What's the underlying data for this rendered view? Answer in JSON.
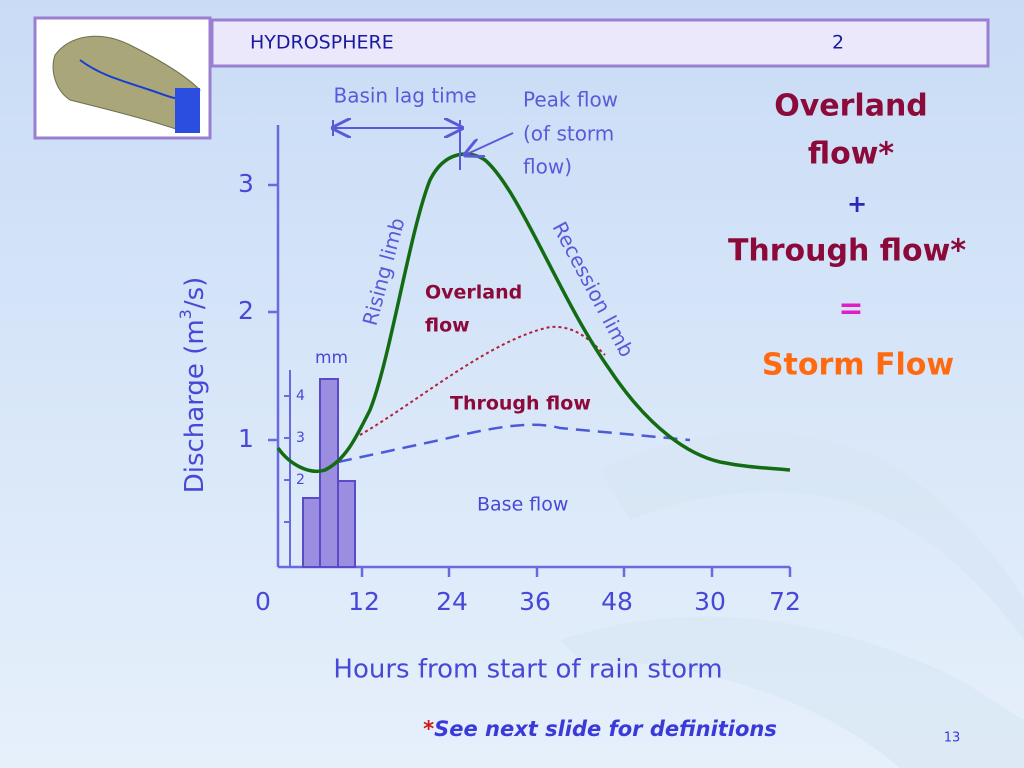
{
  "header": {
    "title": "HYDROSPHERE",
    "number": "2"
  },
  "graph": {
    "y_axis_label": {
      "before": "Discharge (m",
      "superscript": "3",
      "after": "/s)"
    },
    "y_ticks": [
      "1",
      "2",
      "3"
    ],
    "x_axis_label": "Hours from start of rain storm",
    "x_ticks": [
      "0",
      "12",
      "24",
      "36",
      "48",
      "30",
      "72"
    ],
    "rain_unit": "mm",
    "rain_ticks": [
      "4",
      "3",
      "2"
    ],
    "annotations": {
      "basin_lag_time": "Basin lag time",
      "peak_flow": [
        "Peak flow",
        "(of storm",
        "flow)"
      ],
      "rising_limb": "Rising limb",
      "recession_limb": "Recession limb",
      "overland_flow": [
        "Overland",
        "flow"
      ],
      "through_flow": "Through flow",
      "base_flow": "Base flow"
    }
  },
  "equation": {
    "term1": [
      "Overland",
      "flow*"
    ],
    "plus": "+",
    "term2": "Through flow*",
    "equals": "=",
    "result": "Storm Flow"
  },
  "footer": {
    "star": "*",
    "note": "See next slide for definitions",
    "page": "13"
  }
}
